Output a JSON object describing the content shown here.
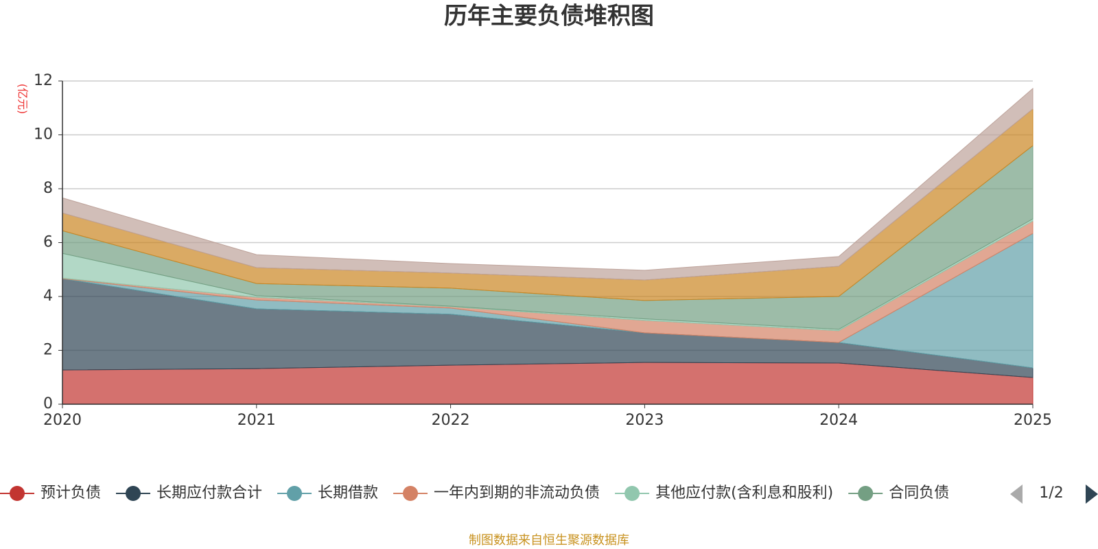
{
  "chart_data": {
    "type": "stacked_area",
    "title": "历年主要负债堆积图",
    "y_unit": "(亿元)",
    "categories": [
      "2020",
      "2021",
      "2022",
      "2023",
      "2024",
      "2025"
    ],
    "ylim": [
      0,
      12
    ],
    "yticks": [
      0,
      2,
      4,
      6,
      8,
      10,
      12
    ],
    "grid": true,
    "series": [
      {
        "name": "预计负债",
        "color": "#c23531",
        "values": [
          1.27,
          1.32,
          1.45,
          1.55,
          1.53,
          0.99
        ]
      },
      {
        "name": "长期应付款合计",
        "color": "#2f4554",
        "values": [
          3.39,
          2.22,
          1.89,
          1.1,
          0.76,
          0.36
        ]
      },
      {
        "name": "长期借款",
        "color": "#61a0a8",
        "values": [
          0,
          0.33,
          0.23,
          0,
          0,
          4.99
        ]
      },
      {
        "name": "一年内到期的非流动负债",
        "color": "#d48265",
        "values": [
          0.02,
          0.1,
          0.05,
          0.46,
          0.44,
          0.46
        ]
      },
      {
        "name": "其他应付款(含利息和股利)",
        "color": "#91c7ae",
        "values": [
          0.92,
          0.06,
          0.02,
          0.06,
          0.05,
          0.08
        ]
      },
      {
        "name": "合同负债",
        "color": "#749f83",
        "values": [
          0.84,
          0.45,
          0.67,
          0.68,
          1.22,
          2.72
        ]
      },
      {
        "color": "#ca8622",
        "values": [
          0.66,
          0.59,
          0.56,
          0.76,
          1.12,
          1.36
        ]
      },
      {
        "color": "#bda29a",
        "values": [
          0.56,
          0.48,
          0.35,
          0.36,
          0.36,
          0.76
        ]
      }
    ],
    "legend_page": "1/2",
    "source": "制图数据来自恒生聚源数据库"
  }
}
